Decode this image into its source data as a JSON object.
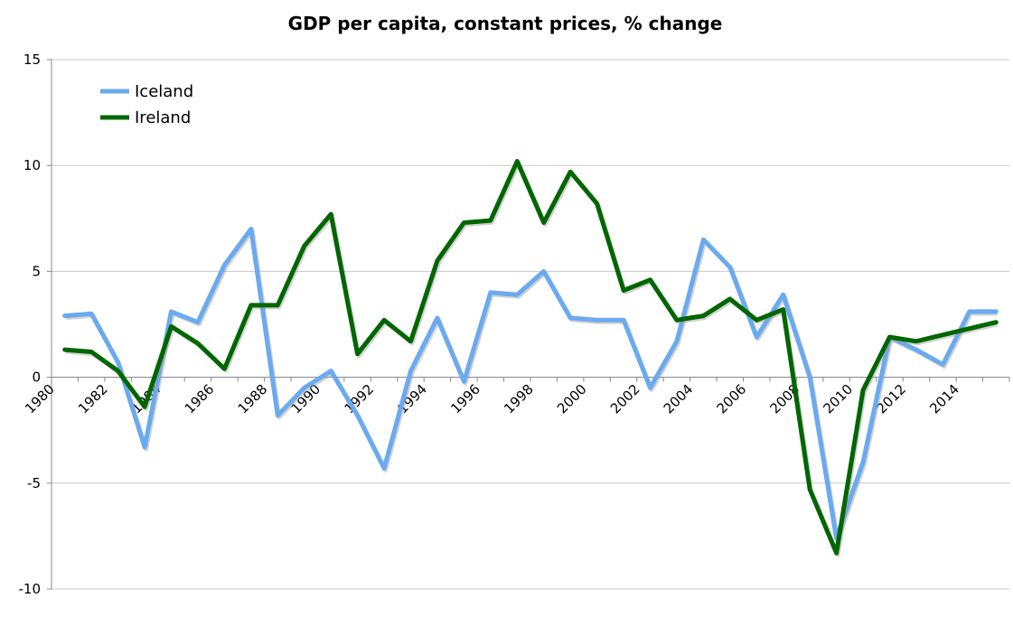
{
  "chart_data": {
    "type": "line",
    "title": "GDP per capita, constant prices, % change",
    "xlabel": "",
    "ylabel": "",
    "ylim": [
      -10,
      15
    ],
    "yticks": [
      -10,
      -5,
      0,
      5,
      10,
      15
    ],
    "x": [
      1980,
      1981,
      1982,
      1983,
      1984,
      1985,
      1986,
      1987,
      1988,
      1989,
      1990,
      1991,
      1992,
      1993,
      1994,
      1995,
      1996,
      1997,
      1998,
      1999,
      2000,
      2001,
      2002,
      2003,
      2004,
      2005,
      2006,
      2007,
      2008,
      2009,
      2010,
      2011,
      2012,
      2013,
      2014,
      2015
    ],
    "x_tick_labels": [
      "1980",
      "1982",
      "1984",
      "1986",
      "1988",
      "1990",
      "1992",
      "1994",
      "1996",
      "1998",
      "2000",
      "2002",
      "2004",
      "2006",
      "2008",
      "2010",
      "2012",
      "2014"
    ],
    "grid": true,
    "legend_position": "top-left",
    "series": [
      {
        "name": "Iceland",
        "color": "#6aaaf0",
        "values": [
          2.9,
          3.0,
          0.7,
          -3.3,
          3.1,
          2.6,
          5.3,
          7.0,
          -1.8,
          -0.5,
          0.3,
          -1.8,
          -4.3,
          0.3,
          2.8,
          -0.2,
          4.0,
          3.9,
          5.0,
          2.8,
          2.7,
          2.7,
          -0.5,
          1.7,
          6.5,
          5.2,
          1.9,
          3.9,
          0.0,
          -7.6,
          -4.0,
          1.9,
          1.3,
          0.6,
          3.1,
          3.1
        ]
      },
      {
        "name": "Ireland",
        "color": "#006600",
        "values": [
          1.3,
          1.2,
          0.3,
          -1.4,
          2.4,
          1.6,
          0.4,
          3.4,
          3.4,
          6.2,
          7.7,
          1.1,
          2.7,
          1.7,
          5.5,
          7.3,
          7.4,
          10.2,
          7.3,
          9.7,
          8.2,
          4.1,
          4.6,
          2.7,
          2.9,
          3.7,
          2.7,
          3.2,
          -5.3,
          -8.3,
          -0.6,
          1.9,
          1.7,
          2.0,
          2.3,
          2.6
        ]
      }
    ]
  }
}
